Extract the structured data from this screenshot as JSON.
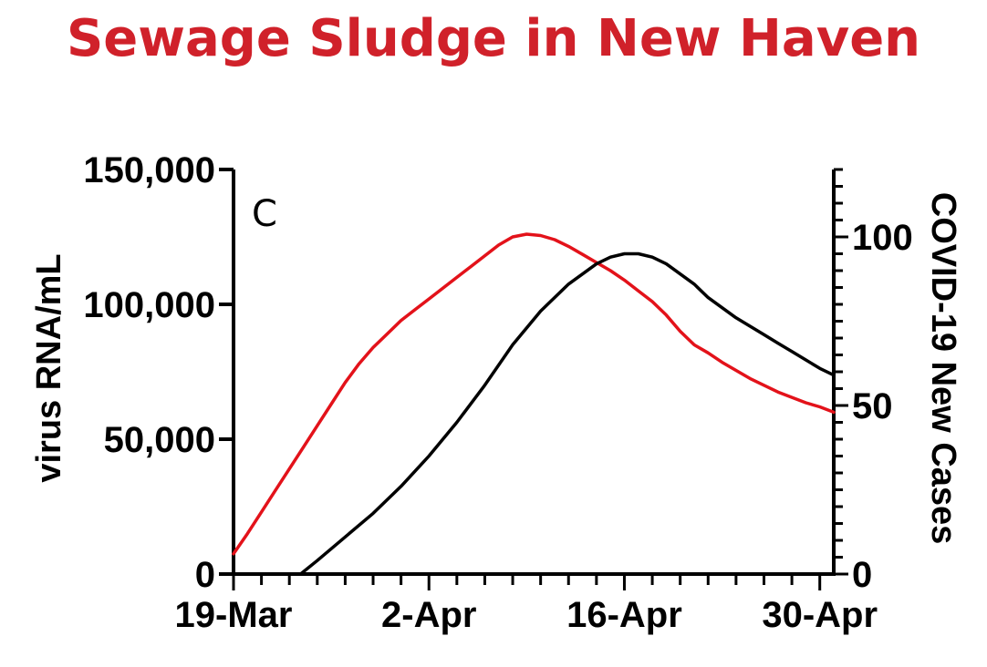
{
  "title": "Sewage Sludge in New Haven",
  "chart_data": {
    "type": "line",
    "panel_label": "C",
    "ylabel": "virus RNA/mL",
    "y2label": "COVID-19 New Cases",
    "x_ticks": [
      "19-Mar",
      "2-Apr",
      "16-Apr",
      "30-Apr"
    ],
    "x_tick_days": [
      0,
      14,
      28,
      42
    ],
    "xlim": [
      0,
      43
    ],
    "ylim": [
      0,
      150000
    ],
    "y_ticks": [
      0,
      50000,
      100000,
      150000
    ],
    "y_tick_labels": [
      "0",
      "50,000",
      "100,000",
      "150,000"
    ],
    "y2lim": [
      0,
      120
    ],
    "y2_ticks": [
      0,
      50,
      100
    ],
    "y2_tick_labels": [
      "0",
      "50",
      "100"
    ],
    "series": [
      {
        "axis": "left",
        "color": "#e3121a",
        "x": [
          0,
          1,
          2,
          3,
          4,
          5,
          6,
          7,
          8,
          9,
          10,
          11,
          12,
          13,
          14,
          15,
          16,
          17,
          18,
          19,
          20,
          21,
          22,
          23,
          24,
          25,
          26,
          27,
          28,
          29,
          30,
          31,
          32,
          33,
          34,
          35,
          36,
          37,
          38,
          39,
          40,
          41,
          42,
          43
        ],
        "values": [
          7500,
          15000,
          23000,
          31000,
          39000,
          47000,
          55000,
          63000,
          71000,
          78000,
          84000,
          89000,
          94000,
          98000,
          102000,
          106000,
          110000,
          114000,
          118000,
          122000,
          125000,
          126000,
          125500,
          124000,
          121500,
          118500,
          115500,
          112500,
          109000,
          105000,
          101000,
          96000,
          90000,
          85000,
          82000,
          78500,
          75500,
          72500,
          70000,
          67500,
          65500,
          63500,
          62000,
          60000
        ]
      },
      {
        "axis": "right",
        "color": "#000000",
        "x": [
          4.8,
          6,
          8,
          10,
          12,
          14,
          16,
          18,
          20,
          22,
          24,
          26,
          27,
          28,
          29,
          30,
          31,
          32,
          33,
          34,
          35,
          36,
          37,
          38,
          39,
          40,
          41,
          42,
          43
        ],
        "values": [
          0,
          4,
          11,
          18,
          26,
          35,
          45,
          56,
          68,
          78,
          86,
          92,
          94,
          95,
          95,
          94,
          92,
          89,
          86,
          82,
          79,
          76,
          73.5,
          71,
          68.5,
          66,
          63.5,
          61,
          59
        ]
      }
    ]
  }
}
